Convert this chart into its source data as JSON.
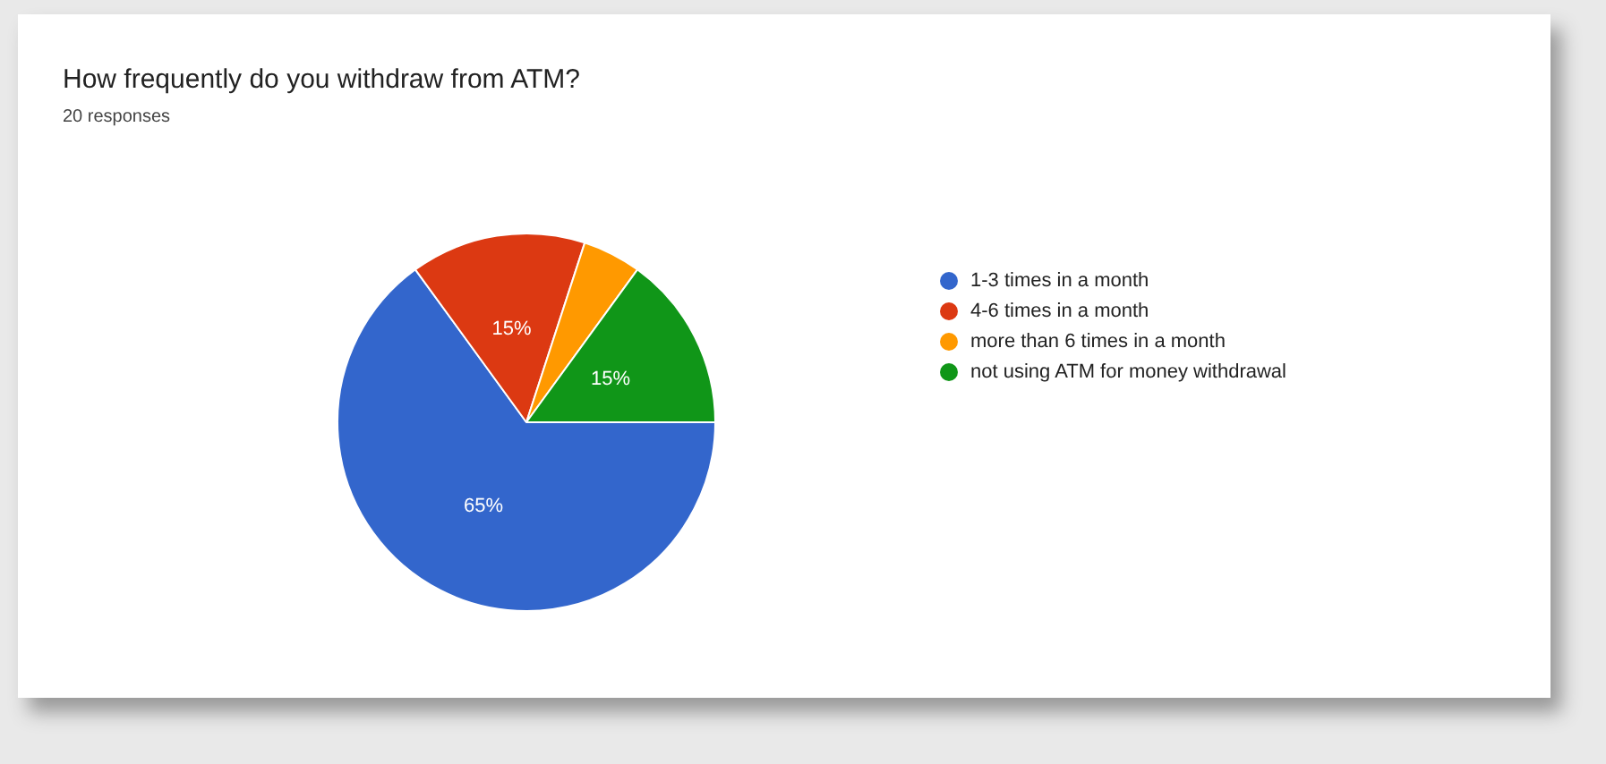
{
  "chart_data": {
    "type": "pie",
    "title": "How frequently do you withdraw from ATM?",
    "subtitle": "20 responses",
    "categories": [
      "1-3 times in a month",
      "4-6 times in a month",
      "more than 6 times in a month",
      "not using ATM for money withdrawal"
    ],
    "values": [
      65,
      15,
      5,
      15
    ],
    "colors": [
      "#3366cc",
      "#dc3912",
      "#ff9900",
      "#109618"
    ],
    "value_labels": [
      "65%",
      "15%",
      null,
      "15%"
    ],
    "legend": "right"
  }
}
